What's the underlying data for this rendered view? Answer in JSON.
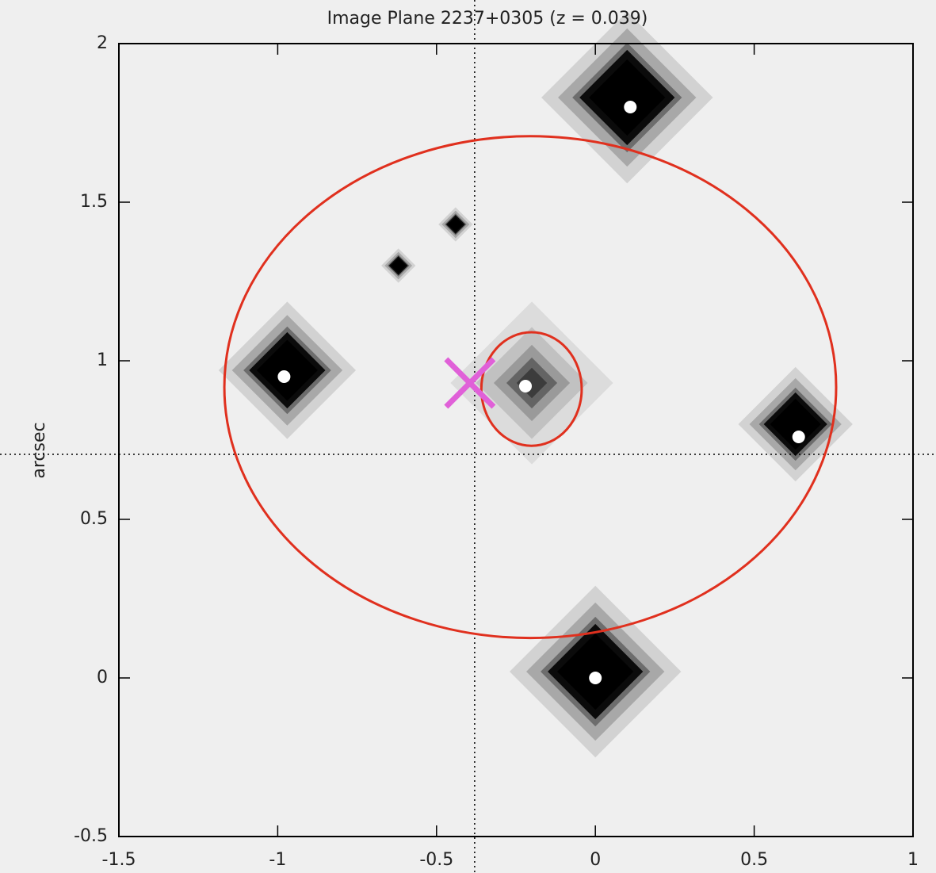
{
  "chart_data": {
    "type": "scatter",
    "title": "Image Plane 2237+0305 (z = 0.039)",
    "ylabel": "arcsec",
    "xlim": [
      -1.5,
      1
    ],
    "ylim": [
      -0.5,
      2
    ],
    "xticks": [
      -1.5,
      -1,
      -0.5,
      0,
      0.5,
      1
    ],
    "yticks": [
      -0.5,
      0,
      0.5,
      1,
      1.5,
      2
    ],
    "crosshair": {
      "x": -0.38,
      "y": 0.705
    },
    "blobs": {
      "x": [
        0.1,
        -0.97,
        -0.2,
        0.63,
        0.0,
        -0.62,
        -0.44
      ],
      "y": [
        1.83,
        0.97,
        0.93,
        0.8,
        0.02,
        1.3,
        1.43
      ],
      "size": [
        0.15,
        0.12,
        0.08,
        0.1,
        0.15,
        0.03,
        0.03
      ]
    },
    "series": [
      {
        "color": "#ffffff",
        "x": [
          0.11,
          -0.98,
          -0.22,
          0.64,
          0.0
        ],
        "y": [
          1.8,
          0.95,
          0.92,
          0.76,
          0.0
        ]
      }
    ],
    "ellipses": [
      {
        "cx": -0.205,
        "cy": 0.917,
        "rx": 0.963,
        "ry": 0.791,
        "color": "#e0301e"
      },
      {
        "cx": -0.201,
        "cy": 0.911,
        "rx": 0.158,
        "ry": 0.179,
        "color": "#e0301e"
      }
    ],
    "source_marker": {
      "x": -0.395,
      "y": 0.93,
      "color": "#e060d8"
    }
  }
}
